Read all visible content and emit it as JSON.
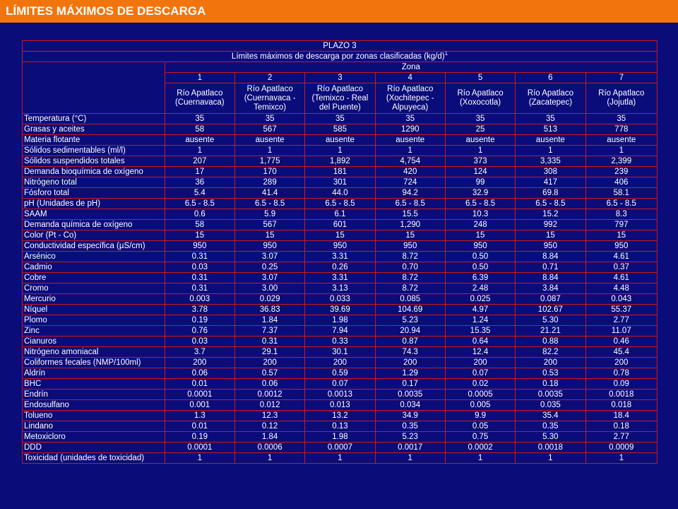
{
  "header": {
    "title": "LÍMITES MÁXIMOS DE DESCARGA"
  },
  "table": {
    "plazo": "PLAZO 3",
    "caption": "Límites máximos de descarga por zonas clasificadas (kg/d)",
    "caption_note": "1",
    "zona_label": "Zona",
    "zone_numbers": [
      "1",
      "2",
      "3",
      "4",
      "5",
      "6",
      "7"
    ],
    "zone_names": [
      "Río Apatlaco (Cuernavaca)",
      "Río Apatlaco (Cuernavaca - Temixco)",
      "Río Apatlaco (Temixco - Real del Puente)",
      "Río Apatlaco (Xochitepec - Alpuyeca)",
      "Río Apatlaco (Xoxocotla)",
      "Río Apatlaco (Zacatepec)",
      "Río Apatlaco (Jojutla)"
    ],
    "rows": [
      {
        "param": "Temperatura (°C)",
        "values": [
          "35",
          "35",
          "35",
          "35",
          "35",
          "35",
          "35"
        ]
      },
      {
        "param": "Grasas y aceites",
        "values": [
          "58",
          "567",
          "585",
          "1290",
          "25",
          "513",
          "778"
        ]
      },
      {
        "param": "Materia flotante",
        "values": [
          "ausente",
          "ausente",
          "ausente",
          "ausente",
          "ausente",
          "ausente",
          "ausente"
        ]
      },
      {
        "param": "Sólidos sedimentables (ml/l)",
        "values": [
          "1",
          "1",
          "1",
          "1",
          "1",
          "1",
          "1"
        ]
      },
      {
        "param": "Sólidos suspendidos totales",
        "values": [
          "207",
          "1,775",
          "1,892",
          "4,754",
          "373",
          "3,335",
          "2,399"
        ]
      },
      {
        "param": "Demanda bioquímica de oxígeno",
        "values": [
          "17",
          "170",
          "181",
          "420",
          "124",
          "308",
          "239"
        ]
      },
      {
        "param": "Nitrógeno total",
        "values": [
          "36",
          "289",
          "301",
          "724",
          "99",
          "417",
          "406"
        ]
      },
      {
        "param": "Fósforo total",
        "values": [
          "5.4",
          "41.4",
          "44.0",
          "94.2",
          "32.9",
          "69.8",
          "58.1"
        ]
      },
      {
        "param": "pH (Unidades de pH)",
        "values": [
          "6.5 - 8.5",
          "6.5 - 8.5",
          "6.5 - 8.5",
          "6.5 - 8.5",
          "6.5 - 8.5",
          "6.5 - 8.5",
          "6.5 - 8.5"
        ]
      },
      {
        "param": "SAAM",
        "values": [
          "0.6",
          "5.9",
          "6.1",
          "15.5",
          "10.3",
          "15.2",
          "8.3"
        ]
      },
      {
        "param": "Demanda química de oxígeno",
        "values": [
          "58",
          "567",
          "601",
          "1,290",
          "248",
          "992",
          "797"
        ]
      },
      {
        "param": "Color (Pt - Co)",
        "values": [
          "15",
          "15",
          "15",
          "15",
          "15",
          "15",
          "15"
        ]
      },
      {
        "param": "Conductividad específica (µS/cm)",
        "values": [
          "950",
          "950",
          "950",
          "950",
          "950",
          "950",
          "950"
        ]
      },
      {
        "param": "Arsénico",
        "values": [
          "0.31",
          "3.07",
          "3.31",
          "8.72",
          "0.50",
          "8.84",
          "4.61"
        ]
      },
      {
        "param": "Cadmio",
        "values": [
          "0.03",
          "0.25",
          "0.26",
          "0.70",
          "0.50",
          "0.71",
          "0.37"
        ]
      },
      {
        "param": "Cobre",
        "values": [
          "0.31",
          "3.07",
          "3.31",
          "8.72",
          "6.39",
          "8.84",
          "4.61"
        ]
      },
      {
        "param": "Cromo",
        "values": [
          "0.31",
          "3.00",
          "3.13",
          "8.72",
          "2.48",
          "3.84",
          "4.48"
        ]
      },
      {
        "param": "Mercurio",
        "values": [
          "0.003",
          "0.029",
          "0.033",
          "0.085",
          "0.025",
          "0.087",
          "0.043"
        ]
      },
      {
        "param": "Níquel",
        "values": [
          "3.78",
          "36.83",
          "39.69",
          "104.69",
          "4.97",
          "102.67",
          "55.37"
        ]
      },
      {
        "param": "Plomo",
        "values": [
          "0.19",
          "1.84",
          "1.98",
          "5.23",
          "1.24",
          "5.30",
          "2.77"
        ]
      },
      {
        "param": "Zinc",
        "values": [
          "0.76",
          "7.37",
          "7.94",
          "20.94",
          "15.35",
          "21.21",
          "11.07"
        ]
      },
      {
        "param": "Cianuros",
        "values": [
          "0.03",
          "0.31",
          "0.33",
          "0.87",
          "0.64",
          "0.88",
          "0.46"
        ]
      },
      {
        "param": "Nitrógeno amoniacal",
        "values": [
          "3.7",
          "29.1",
          "30.1",
          "74.3",
          "12.4",
          "82.2",
          "45.4"
        ]
      },
      {
        "param": "Coliformes fecales (NMP/100ml)",
        "values": [
          "200",
          "200",
          "200",
          "200",
          "200",
          "200",
          "200"
        ]
      },
      {
        "param": "Aldrín",
        "values": [
          "0.06",
          "0.57",
          "0.59",
          "1.29",
          "0.07",
          "0.53",
          "0.78"
        ]
      },
      {
        "param": "BHC",
        "values": [
          "0.01",
          "0.06",
          "0.07",
          "0.17",
          "0.02",
          "0.18",
          "0.09"
        ]
      },
      {
        "param": "Endrín",
        "values": [
          "0.0001",
          "0.0012",
          "0.0013",
          "0.0035",
          "0.0005",
          "0.0035",
          "0.0018"
        ]
      },
      {
        "param": "Endosulfano",
        "values": [
          "0.001",
          "0.012",
          "0.013",
          "0.034",
          "0.005",
          "0.035",
          "0.018"
        ]
      },
      {
        "param": "Tolueno",
        "values": [
          "1.3",
          "12.3",
          "13.2",
          "34.9",
          "9.9",
          "35.4",
          "18.4"
        ]
      },
      {
        "param": "Lindano",
        "values": [
          "0.01",
          "0.12",
          "0.13",
          "0.35",
          "0.05",
          "0.35",
          "0.18"
        ]
      },
      {
        "param": "Metoxicloro",
        "values": [
          "0.19",
          "1.84",
          "1.98",
          "5.23",
          "0.75",
          "5.30",
          "2.77"
        ]
      },
      {
        "param": "DDD",
        "values": [
          "0.0001",
          "0.0006",
          "0.0007",
          "0.0017",
          "0.0002",
          "0.0018",
          "0.0009"
        ]
      },
      {
        "param": "Toxicidad (unidades de toxicidad)",
        "values": [
          "1",
          "1",
          "1",
          "1",
          "1",
          "1",
          "1"
        ]
      }
    ]
  }
}
